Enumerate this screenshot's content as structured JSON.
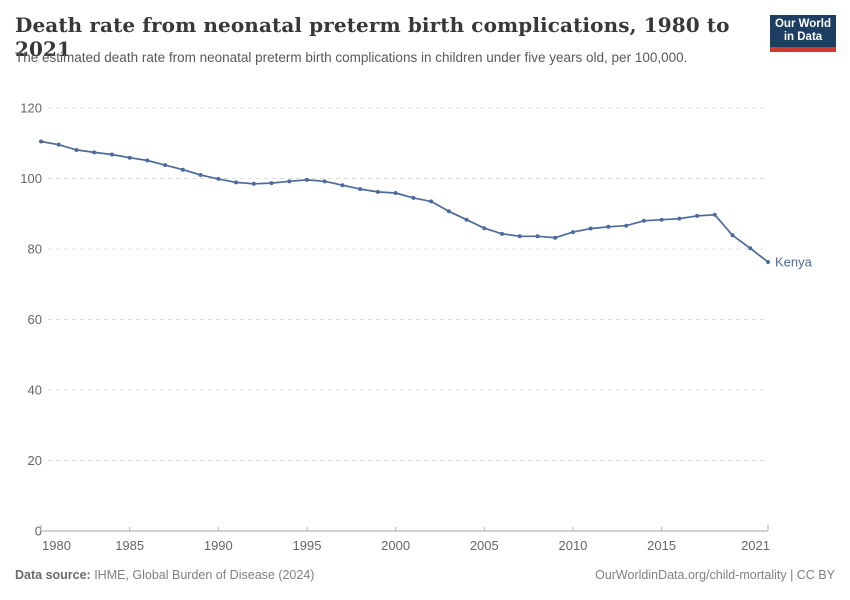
{
  "header": {
    "title": "Death rate from neonatal preterm birth complications, 1980 to 2021",
    "subtitle": "The estimated death rate from neonatal preterm birth complications in children under five years old, per 100,000."
  },
  "logo": {
    "line1": "Our World",
    "line2": "in Data",
    "bg_color": "#1d3d63",
    "accent_color": "#cf3b32"
  },
  "chart_data": {
    "type": "line",
    "title": "Death rate from neonatal preterm birth complications, 1980 to 2021",
    "xlabel": "",
    "ylabel": "",
    "ylim": [
      0,
      120
    ],
    "yticks": [
      0,
      20,
      40,
      60,
      80,
      100,
      120
    ],
    "xticks": [
      1980,
      1985,
      1990,
      1995,
      2000,
      2005,
      2010,
      2015,
      2021
    ],
    "grid": "horizontal-dashed",
    "legend_position": "end-of-line-label",
    "x": [
      1980,
      1981,
      1982,
      1983,
      1984,
      1985,
      1986,
      1987,
      1988,
      1989,
      1990,
      1991,
      1992,
      1993,
      1994,
      1995,
      1996,
      1997,
      1998,
      1999,
      2000,
      2001,
      2002,
      2003,
      2004,
      2005,
      2006,
      2007,
      2008,
      2009,
      2010,
      2011,
      2012,
      2013,
      2014,
      2015,
      2016,
      2017,
      2018,
      2019,
      2020,
      2021
    ],
    "series": [
      {
        "name": "Kenya",
        "color": "#4c6a9c",
        "values": [
          110.5,
          109.6,
          108.1,
          107.4,
          106.8,
          105.9,
          105.1,
          103.8,
          102.5,
          101.0,
          99.9,
          98.9,
          98.5,
          98.7,
          99.2,
          99.6,
          99.2,
          98.1,
          97.0,
          96.2,
          95.9,
          94.5,
          93.5,
          90.7,
          88.3,
          85.9,
          84.3,
          83.6,
          83.6,
          83.2,
          84.8,
          85.8,
          86.3,
          86.6,
          88.0,
          88.3,
          88.6,
          89.4,
          89.7,
          83.9,
          80.2,
          76.3
        ]
      }
    ],
    "colors": {
      "gridline": "#dcdcdc",
      "axis": "#a5a5a5",
      "tick_label": "#666666"
    }
  },
  "footer": {
    "source_label": "Data source:",
    "source_text": " IHME, Global Burden of Disease (2024)",
    "credit": "OurWorldinData.org/child-mortality | CC BY"
  }
}
